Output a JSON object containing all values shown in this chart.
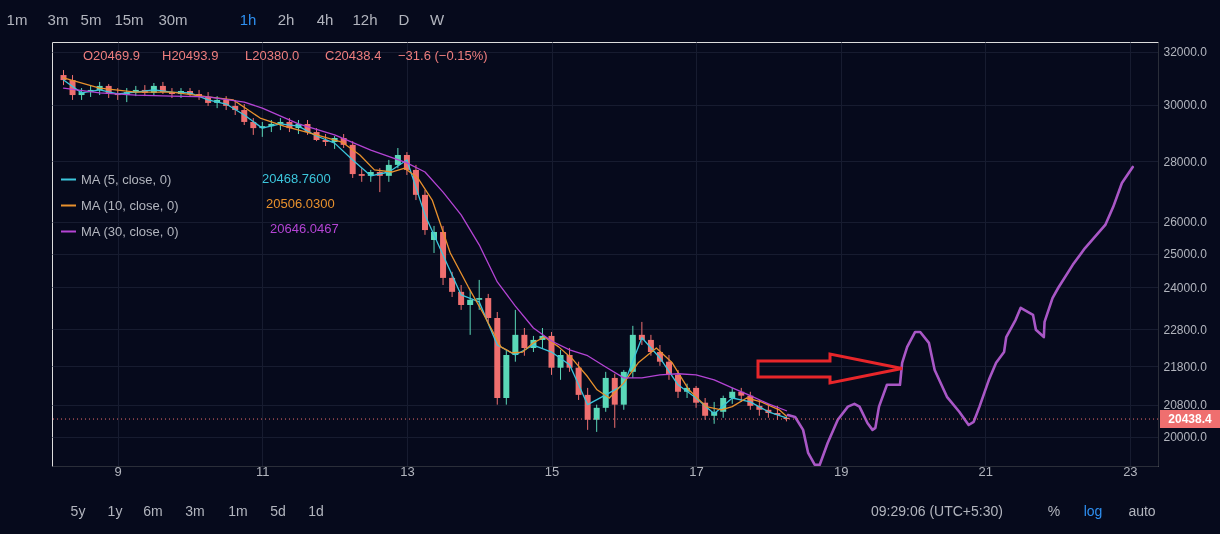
{
  "chart_data": {
    "type": "candlestick",
    "x": [
      8.25,
      8.375,
      8.5,
      8.625,
      8.75,
      8.875,
      9,
      9.125,
      9.25,
      9.375,
      9.5,
      9.625,
      9.75,
      9.875,
      10,
      10.125,
      10.25,
      10.375,
      10.5,
      10.625,
      10.75,
      10.875,
      11,
      11.125,
      11.25,
      11.375,
      11.5,
      11.625,
      11.75,
      11.875,
      12,
      12.125,
      12.25,
      12.375,
      12.5,
      12.625,
      12.75,
      12.875,
      13,
      13.125,
      13.25,
      13.375,
      13.5,
      13.625,
      13.75,
      13.875,
      14,
      14.125,
      14.25,
      14.375,
      14.5,
      14.625,
      14.75,
      14.875,
      15,
      15.125,
      15.25,
      15.375,
      15.5,
      15.625,
      15.75,
      15.875,
      16,
      16.125,
      16.25,
      16.375,
      16.5,
      16.625,
      16.75,
      16.875,
      17,
      17.125,
      17.25,
      17.375,
      17.5,
      17.625,
      17.75,
      17.875,
      18,
      18.125,
      18.25
    ],
    "ohlc": [
      [
        31100,
        31290,
        30720,
        30910
      ],
      [
        30910,
        31100,
        30170,
        30350
      ],
      [
        30350,
        30610,
        30170,
        30460
      ],
      [
        30460,
        30720,
        30280,
        30540
      ],
      [
        30540,
        30840,
        30350,
        30690
      ],
      [
        30690,
        30760,
        30240,
        30390
      ],
      [
        30390,
        30610,
        30170,
        30350
      ],
      [
        30350,
        30610,
        30090,
        30460
      ],
      [
        30460,
        30690,
        30310,
        30540
      ],
      [
        30540,
        30720,
        30310,
        30430
      ],
      [
        30430,
        30800,
        30350,
        30690
      ],
      [
        30690,
        30840,
        30390,
        30460
      ],
      [
        30460,
        30610,
        30240,
        30390
      ],
      [
        30390,
        30610,
        30240,
        30500
      ],
      [
        30500,
        30610,
        30280,
        30390
      ],
      [
        30390,
        30540,
        30170,
        30280
      ],
      [
        30280,
        30460,
        29950,
        30060
      ],
      [
        30060,
        30310,
        29870,
        30170
      ],
      [
        30170,
        30310,
        29800,
        29950
      ],
      [
        29950,
        30170,
        29620,
        29800
      ],
      [
        29800,
        30020,
        29260,
        29370
      ],
      [
        29370,
        29510,
        28910,
        29150
      ],
      [
        29150,
        29370,
        28840,
        29220
      ],
      [
        29220,
        29440,
        29010,
        29300
      ],
      [
        29300,
        29510,
        29080,
        29370
      ],
      [
        29370,
        29510,
        29010,
        29150
      ],
      [
        29150,
        29440,
        28940,
        29300
      ],
      [
        29300,
        29440,
        28910,
        29010
      ],
      [
        29010,
        29150,
        28690,
        28730
      ],
      [
        28730,
        28940,
        28520,
        28660
      ],
      [
        28660,
        28870,
        28420,
        28800
      ],
      [
        28800,
        28940,
        28450,
        28560
      ],
      [
        28560,
        28690,
        27430,
        27560
      ],
      [
        27560,
        27760,
        27300,
        27500
      ],
      [
        27500,
        27700,
        27300,
        27630
      ],
      [
        27630,
        27760,
        26960,
        27500
      ],
      [
        27500,
        28040,
        27300,
        27870
      ],
      [
        27870,
        28450,
        27760,
        28210
      ],
      [
        28210,
        28310,
        27530,
        27700
      ],
      [
        27700,
        27870,
        26700,
        26870
      ],
      [
        26870,
        27030,
        25590,
        25740
      ],
      [
        25430,
        25870,
        25030,
        25680
      ],
      [
        25680,
        25870,
        24070,
        24280
      ],
      [
        24280,
        24460,
        23720,
        23870
      ],
      [
        23870,
        24070,
        23350,
        23490
      ],
      [
        23490,
        23930,
        22650,
        23640
      ],
      [
        23640,
        24220,
        23350,
        23690
      ],
      [
        23690,
        23810,
        23010,
        23120
      ],
      [
        23120,
        23290,
        20800,
        20970
      ],
      [
        20970,
        22240,
        20800,
        22100
      ],
      [
        22100,
        23350,
        21920,
        22650
      ],
      [
        22650,
        22840,
        22080,
        22290
      ],
      [
        22290,
        22620,
        22180,
        22510
      ],
      [
        22510,
        22840,
        22290,
        22620
      ],
      [
        22620,
        22730,
        21570,
        21760
      ],
      [
        21760,
        22240,
        21440,
        22100
      ],
      [
        22100,
        22290,
        21650,
        21760
      ],
      [
        21760,
        21920,
        20920,
        21050
      ],
      [
        21050,
        21230,
        20170,
        20420
      ],
      [
        20420,
        20800,
        20120,
        20720
      ],
      [
        20720,
        21650,
        20620,
        21490
      ],
      [
        21490,
        21600,
        20220,
        20800
      ],
      [
        20800,
        21700,
        20670,
        21650
      ],
      [
        21650,
        22900,
        21490,
        22650
      ],
      [
        22650,
        23010,
        22370,
        22510
      ],
      [
        22510,
        22650,
        22080,
        22180
      ],
      [
        22180,
        22370,
        21810,
        21920
      ],
      [
        21920,
        22100,
        21440,
        21570
      ],
      [
        21570,
        21700,
        20970,
        21130
      ],
      [
        21130,
        21340,
        20970,
        21230
      ],
      [
        21230,
        21280,
        20720,
        20850
      ],
      [
        20850,
        20970,
        20420,
        20520
      ],
      [
        20520,
        20870,
        20320,
        20620
      ],
      [
        20620,
        21030,
        20470,
        20970
      ],
      [
        20970,
        21230,
        20820,
        21130
      ],
      [
        21130,
        21230,
        20870,
        21030
      ],
      [
        21030,
        21130,
        20670,
        20770
      ],
      [
        20770,
        20920,
        20520,
        20670
      ],
      [
        20670,
        20820,
        20470,
        20590
      ],
      [
        20590,
        20770,
        20420,
        20540
      ],
      [
        20469.9,
        20493.9,
        20380.0,
        20438.4
      ]
    ],
    "colors": [
      "#ef6f6f",
      "#ef6f6f",
      "#5ad8b8",
      "#5ad8b8",
      "#5ad8b8",
      "#ef6f6f",
      "#ef6f6f",
      "#5ad8b8",
      "#5ad8b8",
      "#ef6f6f",
      "#5ad8b8",
      "#ef6f6f",
      "#ef6f6f",
      "#5ad8b8",
      "#ef6f6f",
      "#ef6f6f",
      "#ef6f6f",
      "#5ad8b8",
      "#ef6f6f",
      "#ef6f6f",
      "#ef6f6f",
      "#ef6f6f",
      "#5ad8b8",
      "#5ad8b8",
      "#5ad8b8",
      "#ef6f6f",
      "#5ad8b8",
      "#ef6f6f",
      "#ef6f6f",
      "#ef6f6f",
      "#5ad8b8",
      "#ef6f6f",
      "#ef6f6f",
      "#ef6f6f",
      "#5ad8b8",
      "#ef6f6f",
      "#5ad8b8",
      "#5ad8b8",
      "#ef6f6f",
      "#ef6f6f",
      "#ef6f6f",
      "#5ad8b8",
      "#ef6f6f",
      "#ef6f6f",
      "#ef6f6f",
      "#5ad8b8",
      "#5ad8b8",
      "#ef6f6f",
      "#ef6f6f",
      "#5ad8b8",
      "#5ad8b8",
      "#ef6f6f",
      "#5ad8b8",
      "#5ad8b8",
      "#ef6f6f",
      "#5ad8b8",
      "#ef6f6f",
      "#ef6f6f",
      "#ef6f6f",
      "#5ad8b8",
      "#5ad8b8",
      "#ef6f6f",
      "#5ad8b8",
      "#5ad8b8",
      "#ef6f6f",
      "#ef6f6f",
      "#ef6f6f",
      "#ef6f6f",
      "#ef6f6f",
      "#5ad8b8",
      "#ef6f6f",
      "#ef6f6f",
      "#5ad8b8",
      "#5ad8b8",
      "#5ad8b8",
      "#ef6f6f",
      "#ef6f6f",
      "#ef6f6f",
      "#ef6f6f",
      "#ef6f6f",
      "#ef6f6f"
    ],
    "series": [
      {
        "type": "line",
        "name": "MA (5, close, 0)",
        "color": "#3cc6dc",
        "x": [
          8.25,
          8.5,
          8.75,
          9,
          9.25,
          9.5,
          9.75,
          10,
          10.25,
          10.5,
          10.75,
          11,
          11.25,
          11.5,
          11.75,
          12,
          12.25,
          12.5,
          12.75,
          13,
          13.25,
          13.5,
          13.75,
          14,
          14.25,
          14.5,
          14.75,
          15,
          15.25,
          15.5,
          15.75,
          16,
          16.25,
          16.5,
          16.75,
          17,
          17.25,
          17.5,
          17.75,
          18,
          18.25
        ],
        "values": [
          30910,
          30430,
          30540,
          30390,
          30460,
          30540,
          30460,
          30430,
          30170,
          30020,
          29620,
          29150,
          29300,
          29220,
          28870,
          28620,
          28040,
          27500,
          27630,
          28040,
          26220,
          24970,
          23780,
          23580,
          22370,
          22100,
          22370,
          22180,
          21840,
          20800,
          21050,
          21310,
          22570,
          22020,
          21310,
          20970,
          20570,
          20970,
          20870,
          20620,
          20469
        ]
      },
      {
        "type": "line",
        "name": "MA (10, close, 0)",
        "color": "#e8912d",
        "x": [
          8.25,
          8.75,
          9.25,
          9.75,
          10.25,
          10.6,
          10.97,
          11.3,
          11.75,
          12.1,
          12.35,
          12.55,
          12.8,
          12.97,
          13.15,
          13.35,
          13.6,
          13.85,
          14.05,
          14.3,
          14.45,
          14.6,
          14.75,
          14.9,
          15.1,
          15.3,
          15.5,
          15.63,
          15.8,
          16,
          16.2,
          16.45,
          16.67,
          16.9,
          17.14,
          17.35,
          17.5,
          17.7,
          17.9,
          18.15,
          18.25
        ],
        "values": [
          30990,
          30610,
          30460,
          30460,
          30280,
          30170,
          29510,
          29220,
          28910,
          28660,
          28210,
          27700,
          27630,
          27760,
          27430,
          26700,
          25030,
          24010,
          23270,
          22320,
          22160,
          22180,
          22430,
          22590,
          22320,
          21970,
          21520,
          21180,
          20970,
          21360,
          21890,
          22290,
          21890,
          21180,
          20750,
          20670,
          20750,
          20970,
          20870,
          20670,
          20506
        ]
      },
      {
        "type": "line",
        "name": "MA (30, close, 0)",
        "color": "#b444d4",
        "x": [
          8.25,
          8.75,
          9.25,
          9.75,
          10.25,
          10.75,
          11,
          11.5,
          12,
          12.5,
          13,
          13.25,
          13.5,
          13.75,
          14,
          14.25,
          14.5,
          14.75,
          15,
          15.25,
          15.5,
          15.75,
          16,
          16.25,
          16.5,
          16.75,
          17,
          17.25,
          17.5,
          17.75,
          18,
          18.25
        ],
        "values": [
          30610,
          30430,
          30350,
          30310,
          30280,
          30090,
          29870,
          29300,
          28910,
          28380,
          27940,
          27630,
          26960,
          26220,
          25280,
          24160,
          23460,
          22840,
          22480,
          22240,
          22080,
          21780,
          21490,
          21490,
          21570,
          21600,
          21570,
          21440,
          21230,
          21030,
          20820,
          20646
        ]
      },
      {
        "type": "line",
        "color": "#a957c6",
        "x": [
          18.27,
          18.37,
          18.48,
          18.55,
          18.64,
          18.71,
          18.82,
          18.96,
          19.1,
          19.19,
          19.26,
          19.37,
          19.44,
          19.48,
          19.53,
          19.64,
          19.82,
          19.85,
          19.92,
          20.03,
          20.1,
          20.22,
          20.3,
          20.47,
          20.64,
          20.77,
          20.84,
          20.92,
          21.05,
          21.15,
          21.26,
          21.29,
          21.42,
          21.49,
          21.66,
          21.7,
          21.81,
          21.82,
          21.93,
          22.01,
          22.21,
          22.38,
          22.66,
          22.77,
          22.89,
          23.04
        ],
        "values": [
          20540,
          20490,
          20170,
          19610,
          19330,
          19330,
          19850,
          20420,
          20750,
          20820,
          20750,
          20340,
          20170,
          20220,
          20750,
          21310,
          21310,
          21890,
          22320,
          22730,
          22730,
          22430,
          21700,
          21000,
          20620,
          20290,
          20370,
          20750,
          21440,
          21890,
          22180,
          22590,
          23070,
          23410,
          23210,
          22790,
          22590,
          23010,
          23690,
          23990,
          24670,
          25180,
          25900,
          26480,
          27260,
          27800
        ]
      }
    ],
    "xlim": [
      8.16,
      23.32
    ],
    "xticks": [
      9,
      11,
      13,
      15,
      17,
      19,
      21,
      23
    ],
    "ylim": [
      19300,
      32380
    ],
    "yticks": [
      {
        "value": 20000,
        "label": "20000.0"
      },
      {
        "value": 20800,
        "label": "20800.0"
      },
      {
        "value": 21800,
        "label": "21800.0"
      },
      {
        "value": 22800,
        "label": "22800.0"
      },
      {
        "value": 24000,
        "label": "24000.0"
      },
      {
        "value": 25000,
        "label": "25000.0"
      },
      {
        "value": 26000,
        "label": "26000.0"
      },
      {
        "value": 28000,
        "label": "28000.0"
      },
      {
        "value": 30000,
        "label": "30000.0"
      },
      {
        "value": 32000,
        "label": "32000.0"
      }
    ],
    "log": true,
    "grid": true,
    "legend": "top left",
    "ref_lines": [
      {
        "axis": "y",
        "value": 20438.4,
        "label": "20438.4",
        "color": "#ef6f6f",
        "line_style": "dotted"
      }
    ],
    "annotations": [
      "O20469.9",
      "H20493.9",
      "L20380.0",
      "C20438.4",
      "−31.6 (−0.15%)",
      "20468.7600",
      "20506.0300",
      "20646.0467",
      "1m",
      "3m",
      "5m",
      "15m",
      "30m",
      "1h",
      "2h",
      "4h",
      "12h",
      "D",
      "W",
      "5y",
      "1y",
      "6m",
      "3m",
      "1m",
      "5d",
      "1d",
      "09:29:06 (UTC+5:30)",
      "%",
      "log",
      "auto"
    ]
  }
}
